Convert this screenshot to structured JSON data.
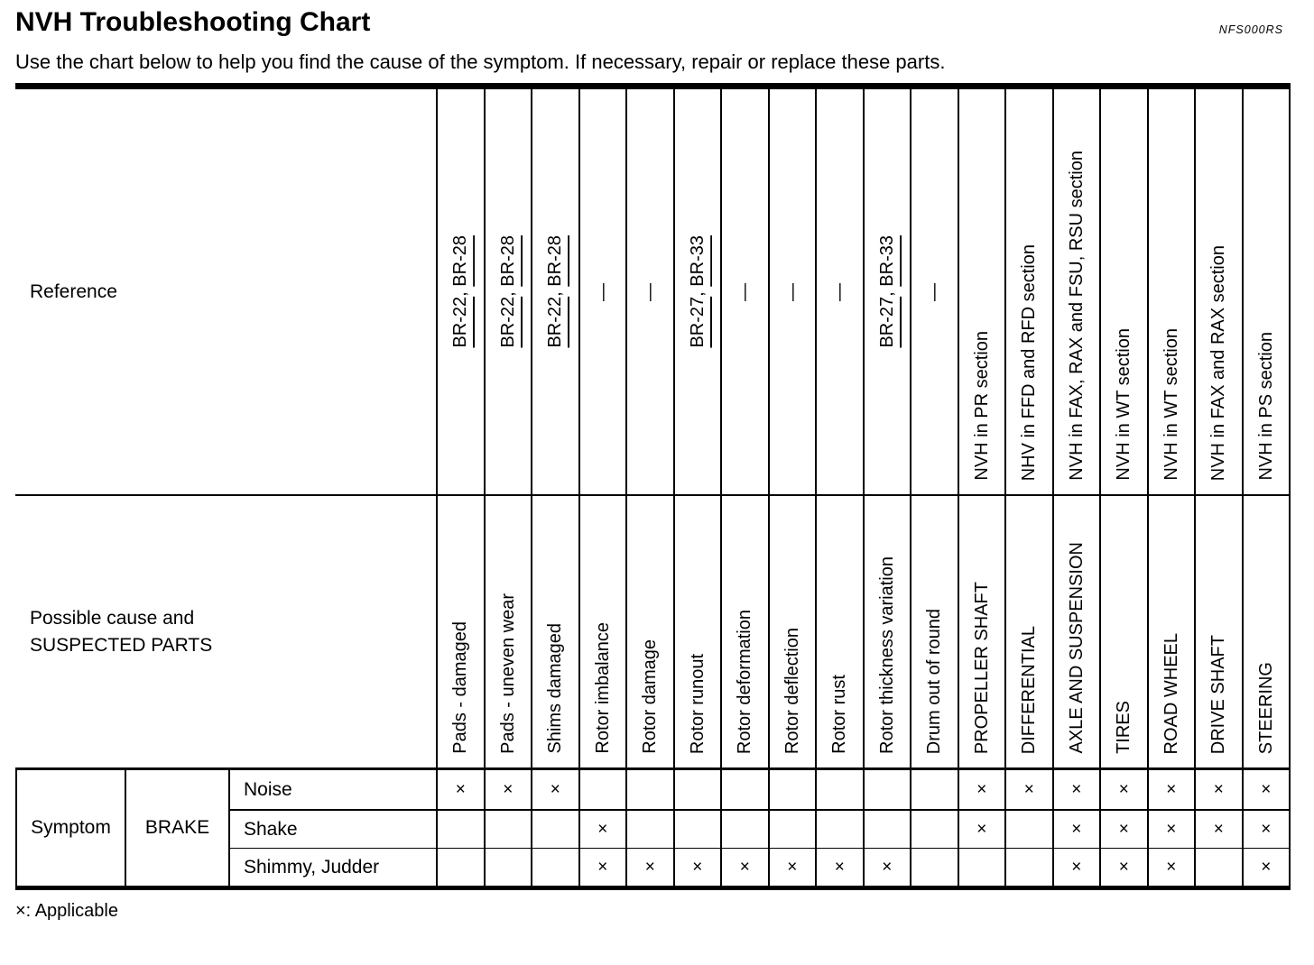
{
  "header": {
    "title": "NVH Troubleshooting Chart",
    "code": "NFS000RS",
    "subtitle": "Use the chart below to help you find the cause of the symptom. If necessary, repair or replace these parts."
  },
  "table": {
    "reference_label": "Reference",
    "cause_label_line1": "Possible cause and",
    "cause_label_line2": "SUSPECTED PARTS",
    "columns": [
      {
        "reference": {
          "type": "links",
          "parts": [
            "BR-22",
            "BR-28"
          ]
        },
        "part": "Pads - damaged"
      },
      {
        "reference": {
          "type": "links",
          "parts": [
            "BR-22",
            "BR-28"
          ]
        },
        "part": "Pads - uneven wear"
      },
      {
        "reference": {
          "type": "links",
          "parts": [
            "BR-22",
            "BR-28"
          ]
        },
        "part": "Shims damaged"
      },
      {
        "reference": {
          "type": "dash",
          "glyph": "—"
        },
        "part": "Rotor imbalance"
      },
      {
        "reference": {
          "type": "dash",
          "glyph": "—"
        },
        "part": "Rotor damage"
      },
      {
        "reference": {
          "type": "links",
          "parts": [
            "BR-27",
            "BR-33"
          ]
        },
        "part": "Rotor runout"
      },
      {
        "reference": {
          "type": "dash",
          "glyph": "—"
        },
        "part": "Rotor deformation"
      },
      {
        "reference": {
          "type": "dash",
          "glyph": "—"
        },
        "part": "Rotor deflection"
      },
      {
        "reference": {
          "type": "dash",
          "glyph": "—"
        },
        "part": "Rotor rust"
      },
      {
        "reference": {
          "type": "links",
          "parts": [
            "BR-27",
            "BR-33"
          ]
        },
        "part": "Rotor thickness variation"
      },
      {
        "reference": {
          "type": "dash",
          "glyph": "—"
        },
        "part": "Drum out of round"
      },
      {
        "reference": {
          "type": "text",
          "label": "NVH in PR section"
        },
        "part": "PROPELLER SHAFT"
      },
      {
        "reference": {
          "type": "text",
          "label": "NHV in FFD and RFD section"
        },
        "part": "DIFFERENTIAL"
      },
      {
        "reference": {
          "type": "text",
          "label": "NVH in FAX, RAX and FSU, RSU section"
        },
        "part": "AXLE AND SUSPENSION"
      },
      {
        "reference": {
          "type": "text",
          "label": "NVH in WT section"
        },
        "part": "TIRES"
      },
      {
        "reference": {
          "type": "text",
          "label": "NVH in WT section"
        },
        "part": "ROAD WHEEL"
      },
      {
        "reference": {
          "type": "text",
          "label": "NVH in FAX and RAX section"
        },
        "part": "DRIVE SHAFT"
      },
      {
        "reference": {
          "type": "text",
          "label": "NVH in PS section"
        },
        "part": "STEERING"
      }
    ],
    "symptom_label": "Symptom",
    "system_label": "BRAKE",
    "mark_glyph": "×",
    "symptoms": [
      {
        "label": "Noise",
        "marks": [
          1,
          1,
          1,
          0,
          0,
          0,
          0,
          0,
          0,
          0,
          0,
          1,
          1,
          1,
          1,
          1,
          1,
          1
        ]
      },
      {
        "label": "Shake",
        "marks": [
          0,
          0,
          0,
          1,
          0,
          0,
          0,
          0,
          0,
          0,
          0,
          1,
          0,
          1,
          1,
          1,
          1,
          1
        ]
      },
      {
        "label": "Shimmy, Judder",
        "marks": [
          0,
          0,
          0,
          1,
          1,
          1,
          1,
          1,
          1,
          1,
          0,
          0,
          0,
          1,
          1,
          1,
          0,
          1
        ]
      }
    ]
  },
  "footer": {
    "legend": "×: Applicable"
  },
  "colors": {
    "ink": "#000000",
    "paper": "#ffffff"
  }
}
